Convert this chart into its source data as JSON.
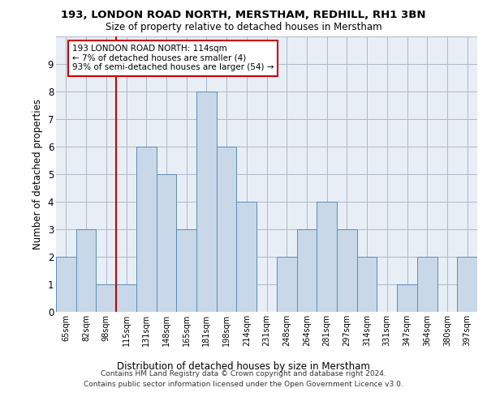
{
  "title": "193, LONDON ROAD NORTH, MERSTHAM, REDHILL, RH1 3BN",
  "subtitle": "Size of property relative to detached houses in Merstham",
  "xlabel": "Distribution of detached houses by size in Merstham",
  "ylabel": "Number of detached properties",
  "bar_labels": [
    "65sqm",
    "82sqm",
    "98sqm",
    "115sqm",
    "131sqm",
    "148sqm",
    "165sqm",
    "181sqm",
    "198sqm",
    "214sqm",
    "231sqm",
    "248sqm",
    "264sqm",
    "281sqm",
    "297sqm",
    "314sqm",
    "331sqm",
    "347sqm",
    "364sqm",
    "380sqm",
    "397sqm"
  ],
  "bar_values": [
    2,
    3,
    1,
    1,
    6,
    5,
    3,
    8,
    6,
    4,
    0,
    2,
    3,
    4,
    3,
    2,
    0,
    1,
    2,
    0,
    2
  ],
  "bar_color": "#c8d8e8",
  "bar_edge_color": "#5b8db8",
  "vline_color": "#cc0000",
  "annotation_text": "193 LONDON ROAD NORTH: 114sqm\n← 7% of detached houses are smaller (4)\n93% of semi-detached houses are larger (54) →",
  "ylim": [
    0,
    10
  ],
  "yticks": [
    0,
    1,
    2,
    3,
    4,
    5,
    6,
    7,
    8,
    9,
    10
  ],
  "grid_color": "#b0b8c8",
  "bg_color": "#e8eef5",
  "footer_line1": "Contains HM Land Registry data © Crown copyright and database right 2024.",
  "footer_line2": "Contains public sector information licensed under the Open Government Licence v3.0."
}
